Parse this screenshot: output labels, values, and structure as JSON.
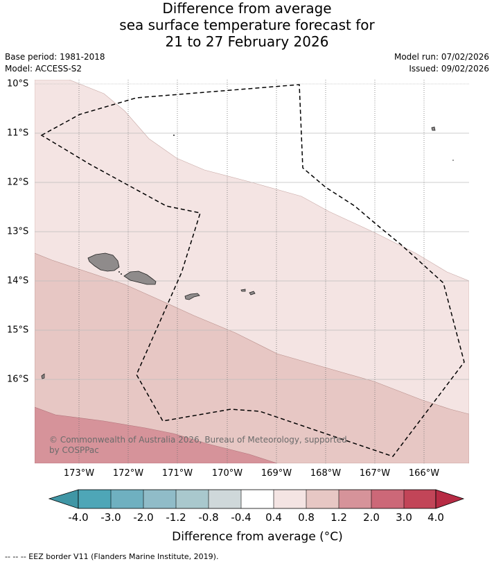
{
  "title": {
    "line1": "Difference from average",
    "line2": "sea surface temperature forecast for",
    "line3": "21 to 27 February 2026"
  },
  "meta": {
    "base_period": "Base period: 1981-2018",
    "model": "Model: ACCESS-S2",
    "model_run": "Model run: 07/02/2026",
    "issued": "Issued: 09/02/2026"
  },
  "map": {
    "lat_labels": [
      "10°S",
      "11°S",
      "12°S",
      "13°S",
      "14°S",
      "15°S",
      "16°S"
    ],
    "lon_labels": [
      "173°W",
      "172°W",
      "171°W",
      "170°W",
      "169°W",
      "168°W",
      "167°W",
      "166°W"
    ],
    "copyright_line1": "© Commonwealth of Australia 2026, Bureau of Meteorology, supported",
    "copyright_line2": "by COSPPac",
    "fill_colors": {
      "band_0_4_0_8": "#f4e4e3",
      "band_0_8_1_2": "#e7c7c4",
      "band_1_2_2_0": "#d6939a",
      "land": "#8f8b8b"
    }
  },
  "colorbar": {
    "title": "Difference from average (°C)",
    "ticks": [
      "-4.0",
      "-3.0",
      "-2.0",
      "-1.2",
      "-0.8",
      "-0.4",
      "0.4",
      "0.8",
      "1.2",
      "2.0",
      "3.0",
      "4.0"
    ],
    "colors": [
      "#4096a5",
      "#4ea6b7",
      "#6fb0c0",
      "#90bcc8",
      "#a9c8cd",
      "#cfd8da",
      "#ffffff",
      "#f4e4e3",
      "#e7c7c4",
      "#d6939a",
      "#cc6878",
      "#c24558",
      "#b72b44"
    ]
  },
  "footer": {
    "eez_note": "--  --  -- EEZ border V11 (Flanders Marine Institute, 2019)."
  }
}
